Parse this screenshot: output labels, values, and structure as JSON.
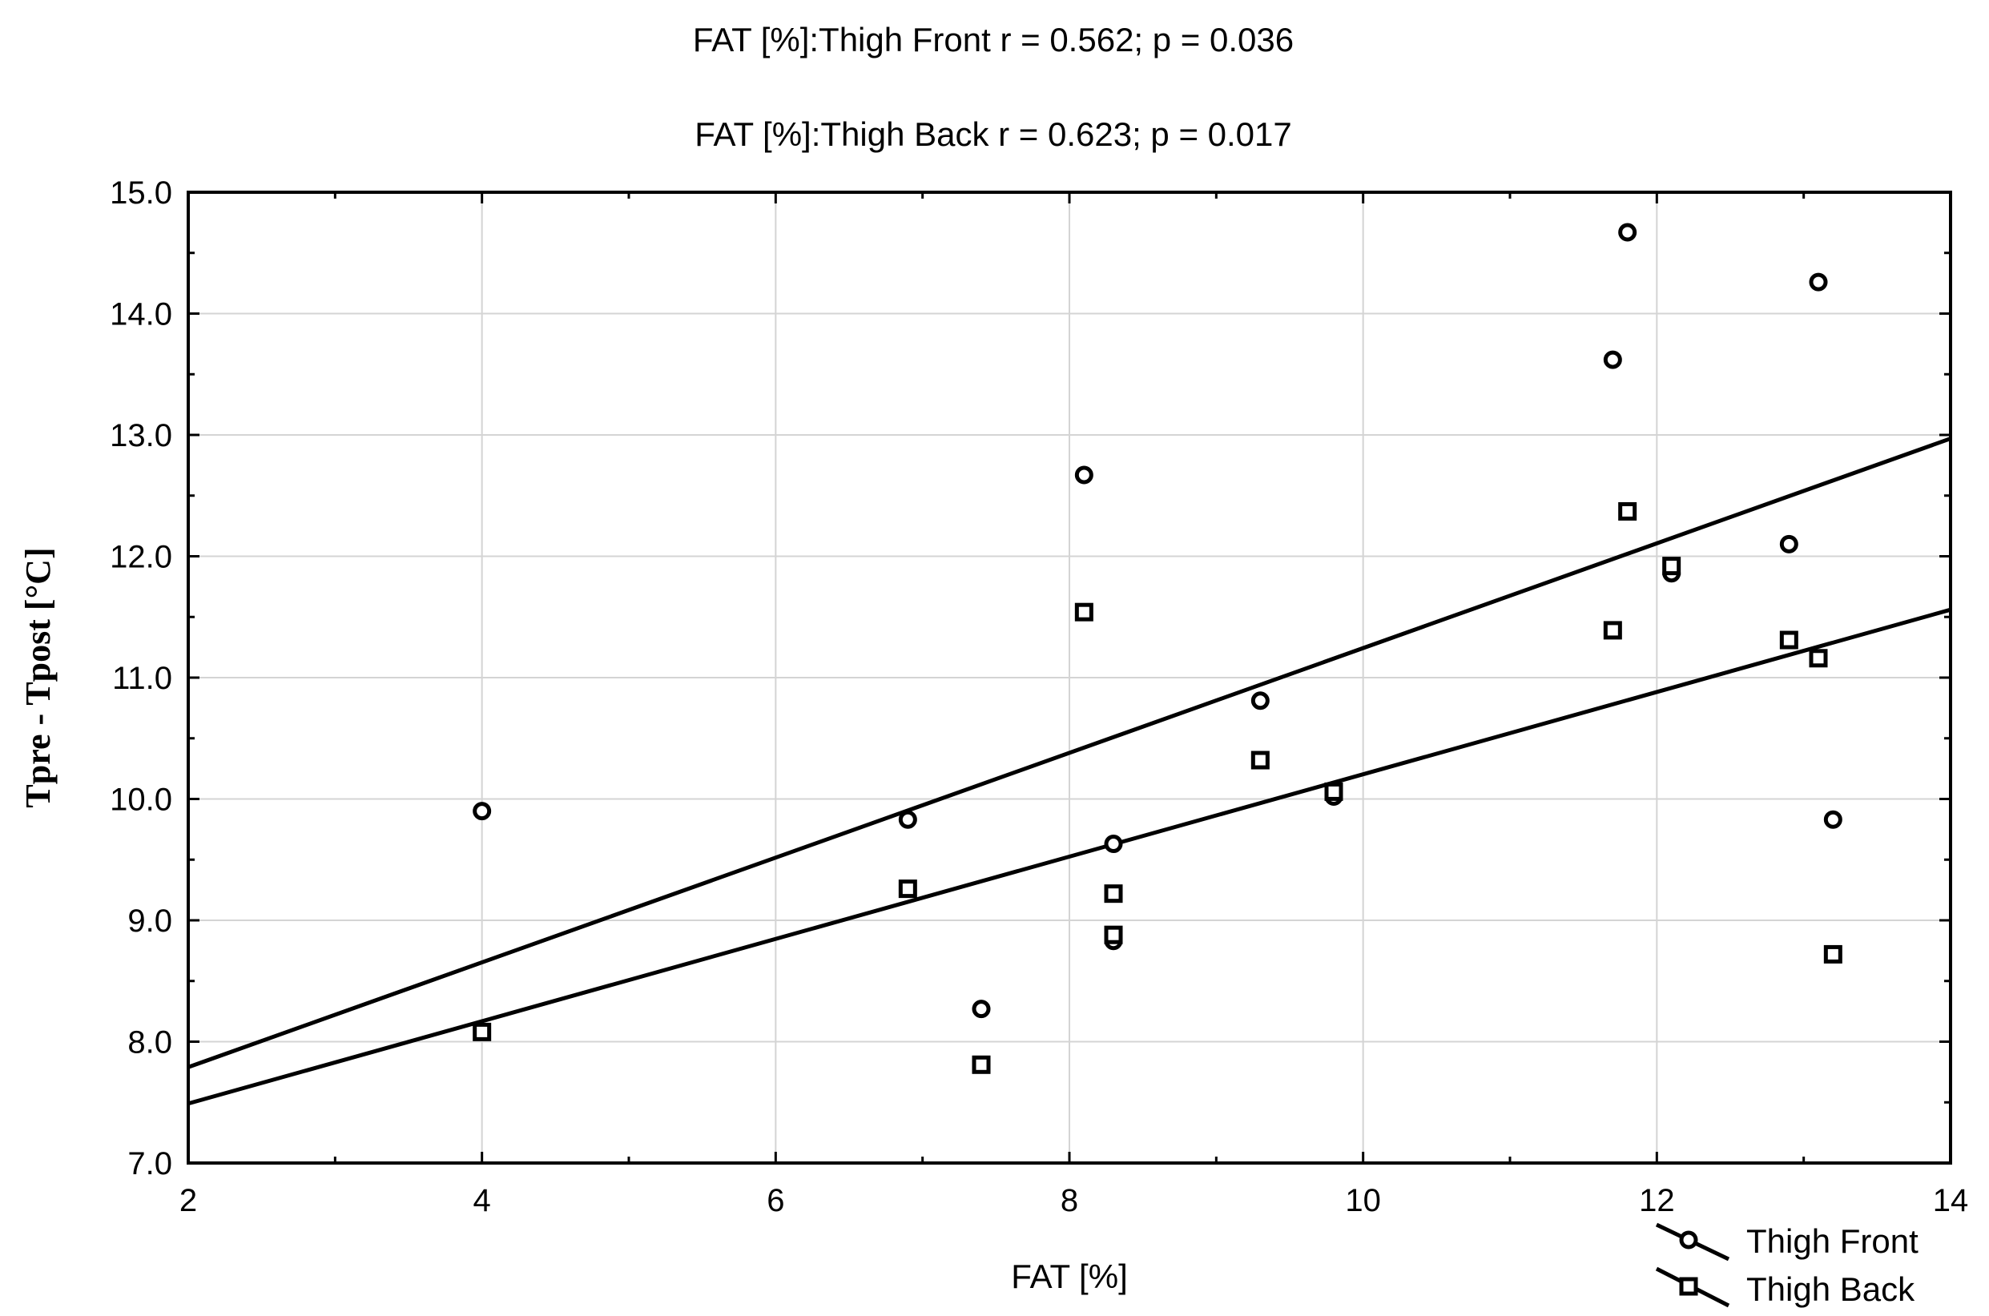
{
  "chart_data": {
    "type": "scatter",
    "title_lines": [
      "FAT [%]:Thigh Front   r = 0.562; p = 0.036",
      "FAT [%]:Thigh Back   r = 0.623; p = 0.017"
    ],
    "xlabel": "FAT [%]",
    "ylabel": "Tpre -  Tpost  [°C]",
    "xlim": [
      2,
      14
    ],
    "ylim": [
      7.0,
      15.0
    ],
    "x_ticks": [
      2,
      4,
      6,
      8,
      10,
      12,
      14
    ],
    "y_ticks": [
      7.0,
      8.0,
      9.0,
      10.0,
      11.0,
      12.0,
      13.0,
      14.0,
      15.0
    ],
    "x_tick_labels": [
      "2",
      "4",
      "6",
      "8",
      "10",
      "12",
      "14"
    ],
    "y_tick_labels": [
      "7.0",
      "8.0",
      "9.0",
      "10.0",
      "11.0",
      "12.0",
      "13.0",
      "14.0",
      "15.0"
    ],
    "grid": true,
    "legend_position": "bottom-right",
    "series": [
      {
        "name": "Thigh Front",
        "marker": "circle",
        "points": [
          [
            4.0,
            9.9
          ],
          [
            6.9,
            9.83
          ],
          [
            7.4,
            8.27
          ],
          [
            8.1,
            12.67
          ],
          [
            8.3,
            9.63
          ],
          [
            8.3,
            8.83
          ],
          [
            9.3,
            10.81
          ],
          [
            9.8,
            10.02
          ],
          [
            11.7,
            13.62
          ],
          [
            11.8,
            14.67
          ],
          [
            12.1,
            11.86
          ],
          [
            12.9,
            12.1
          ],
          [
            13.1,
            14.26
          ],
          [
            13.2,
            9.83
          ]
        ],
        "fit_line": {
          "x": [
            2,
            14
          ],
          "y": [
            7.79,
            12.97
          ]
        }
      },
      {
        "name": "Thigh Back",
        "marker": "square",
        "points": [
          [
            4.0,
            8.08
          ],
          [
            6.9,
            9.26
          ],
          [
            7.4,
            7.81
          ],
          [
            8.1,
            11.54
          ],
          [
            8.3,
            9.22
          ],
          [
            8.3,
            8.88
          ],
          [
            9.3,
            10.32
          ],
          [
            9.8,
            10.06
          ],
          [
            11.7,
            11.39
          ],
          [
            11.8,
            12.37
          ],
          [
            12.1,
            11.92
          ],
          [
            12.9,
            11.31
          ],
          [
            13.1,
            11.16
          ],
          [
            13.2,
            8.72
          ]
        ],
        "fit_line": {
          "x": [
            2,
            14
          ],
          "y": [
            7.49,
            11.56
          ]
        }
      }
    ]
  }
}
